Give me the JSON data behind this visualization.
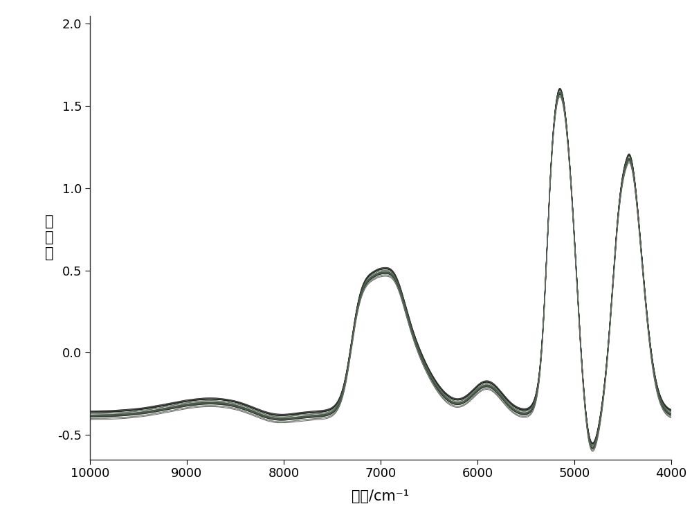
{
  "x_min": 4000,
  "x_max": 10000,
  "y_min": -0.65,
  "y_max": 2.05,
  "yticks": [
    -0.5,
    0.0,
    0.5,
    1.0,
    1.5,
    2.0
  ],
  "xticks": [
    10000,
    9000,
    8000,
    7000,
    6000,
    5000,
    4000
  ],
  "xlabel": "波数/cm⁻¹",
  "ylabel": "吸收度",
  "n_spectra": 25,
  "background_color": "#ffffff",
  "figsize": [
    10.0,
    7.54
  ],
  "dpi": 100
}
